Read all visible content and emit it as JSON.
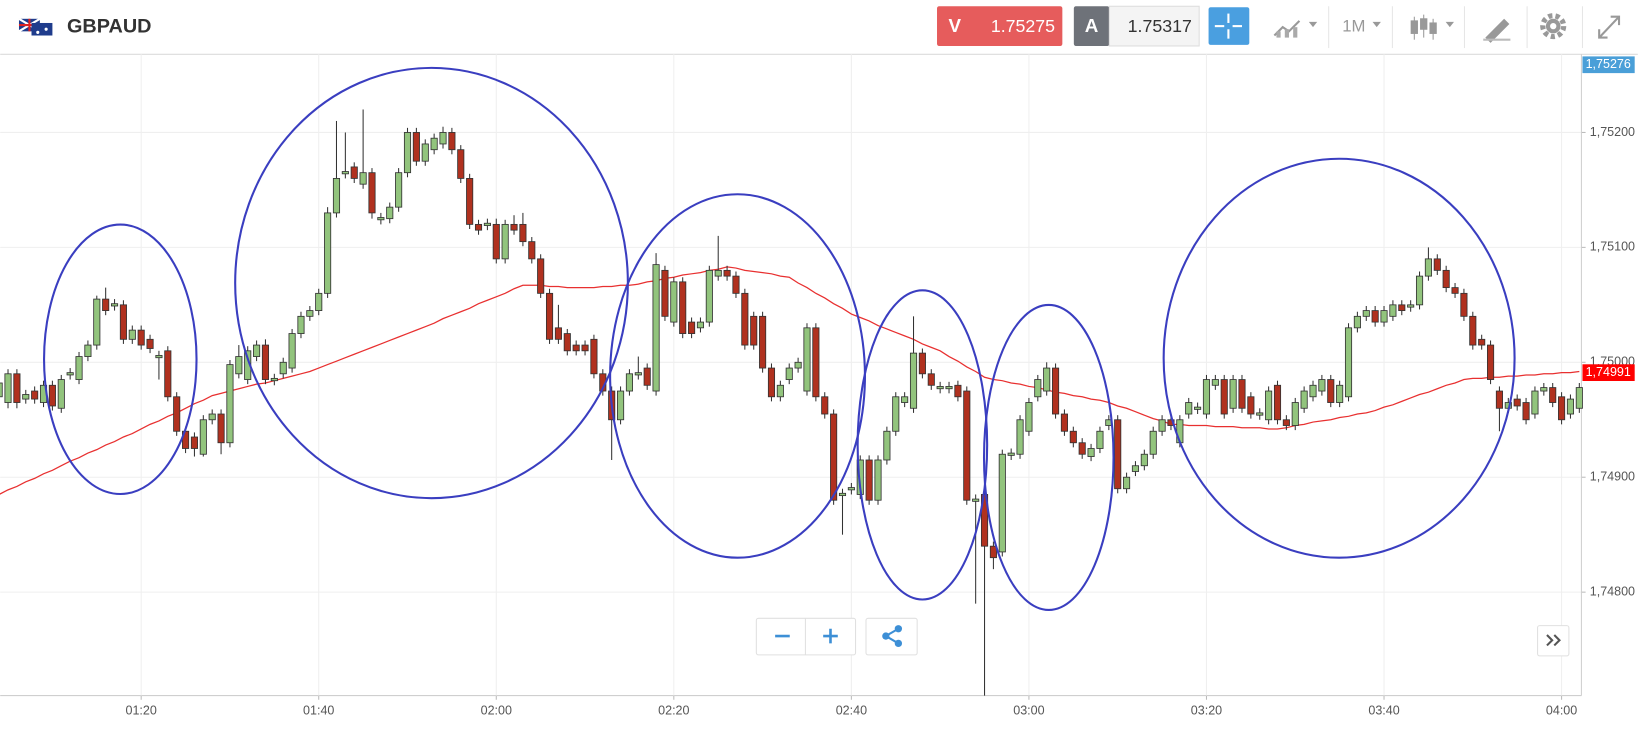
{
  "header": {
    "symbol": "GBPAUD",
    "sell_label": "V",
    "sell_price": "1.75275",
    "buy_label": "A",
    "buy_price": "1.75317",
    "timeframe": "1M"
  },
  "chart_data": {
    "type": "candlestick",
    "categories": [
      null,
      null,
      null,
      null,
      null,
      null,
      null,
      null,
      null,
      null,
      null,
      null,
      null,
      null,
      null,
      null,
      "01:20",
      null,
      null,
      null,
      null,
      null,
      null,
      null,
      null,
      null,
      null,
      null,
      null,
      null,
      null,
      null,
      null,
      null,
      null,
      null,
      "01:40",
      null,
      null,
      null,
      null,
      null,
      null,
      null,
      null,
      null,
      null,
      null,
      null,
      null,
      null,
      null,
      null,
      null,
      null,
      null,
      "02:00",
      null,
      null,
      null,
      null,
      null,
      null,
      null,
      null,
      null,
      null,
      null,
      null,
      null,
      null,
      null,
      null,
      null,
      null,
      null,
      "02:20",
      null,
      null,
      null,
      null,
      null,
      null,
      null,
      null,
      null,
      null,
      null,
      null,
      null,
      null,
      null,
      null,
      null,
      null,
      null,
      "02:40",
      null,
      null,
      null,
      null,
      null,
      null,
      null,
      null,
      null,
      null,
      null,
      null,
      null,
      null,
      null,
      null,
      null,
      null,
      null,
      "03:00",
      null,
      null,
      null,
      null,
      null,
      null,
      null,
      null,
      null,
      null,
      null,
      null,
      null,
      null,
      null,
      null,
      null,
      null,
      null,
      "03:20",
      null,
      null,
      null,
      null,
      null,
      null,
      null,
      null,
      null,
      null,
      null,
      null,
      null,
      null,
      null,
      null,
      null,
      null,
      null,
      "03:40",
      null,
      null,
      null,
      null,
      null,
      null,
      null,
      null,
      null,
      null,
      null,
      null,
      null,
      null,
      null,
      null,
      null,
      null,
      null,
      "04:00",
      null,
      null
    ],
    "open": [
      1.7497,
      1.74965,
      1.7499,
      1.74968,
      1.74975,
      1.74965,
      1.7498,
      1.7496,
      1.74989,
      1.74985,
      1.75005,
      1.75015,
      1.75055,
      1.75049,
      1.7505,
      1.7502,
      1.75028,
      1.7502,
      1.75004,
      1.7501,
      1.7497,
      1.7494,
      1.74935,
      1.7492,
      1.7495,
      1.74955,
      1.7493,
      1.7499,
      1.74985,
      1.75005,
      1.75015,
      1.74984,
      1.7499,
      1.74995,
      1.75025,
      1.7504,
      1.75045,
      1.7506,
      1.7513,
      1.75164,
      1.7517,
      1.75155,
      1.75165,
      1.75124,
      1.75125,
      1.75135,
      1.75165,
      1.752,
      1.75175,
      1.75185,
      1.7519,
      1.752,
      1.75185,
      1.7516,
      1.7512,
      1.75119,
      1.7512,
      1.7509,
      1.7512,
      1.7512,
      1.75105,
      1.7509,
      1.7506,
      1.7503,
      1.75025,
      1.75015,
      1.75015,
      1.7502,
      1.7499,
      1.74975,
      1.7495,
      1.74975,
      1.74989,
      1.74995,
      1.74975,
      1.7508,
      1.75035,
      1.7507,
      1.75035,
      1.7503,
      1.75035,
      1.75075,
      1.7508,
      1.75075,
      1.7506,
      1.7504,
      1.7504,
      1.74995,
      1.7497,
      1.74985,
      1.74995,
      1.74975,
      1.7503,
      1.7497,
      1.74955,
      1.74884,
      1.74889,
      1.74885,
      1.74915,
      1.7488,
      1.74915,
      1.7494,
      1.74965,
      1.7496,
      1.75008,
      1.7499,
      1.74977,
      1.74977,
      1.7498,
      1.74975,
      1.74879,
      1.74885,
      1.7484,
      1.74835,
      1.74919,
      1.7492,
      1.7494,
      1.7497,
      1.74975,
      1.74995,
      1.74955,
      1.7494,
      1.7493,
      1.74918,
      1.74925,
      1.74945,
      1.7495,
      1.7489,
      1.74905,
      1.7491,
      1.7492,
      1.7494,
      1.7495,
      1.7493,
      1.74955,
      1.74959,
      1.74955,
      1.7498,
      1.74985,
      1.7496,
      1.74985,
      1.7497,
      1.74954,
      1.7495,
      1.7498,
      1.7495,
      1.74945,
      1.7496,
      1.7497,
      1.74975,
      1.74985,
      1.74965,
      1.7497,
      1.7503,
      1.7504,
      1.75045,
      1.75035,
      1.7504,
      1.7505,
      1.75048,
      1.7505,
      1.75075,
      1.7509,
      1.7508,
      1.75065,
      1.7506,
      1.7504,
      1.7502,
      1.75015,
      1.74975,
      1.7496,
      1.74968,
      1.74965,
      1.74955,
      1.74975,
      1.74978,
      1.7497,
      1.74955,
      1.7496
    ],
    "high": [
      1.74988,
      1.74994,
      1.74994,
      1.74976,
      1.74979,
      1.74984,
      1.74984,
      1.74989,
      1.74995,
      1.75009,
      1.75019,
      1.75058,
      1.75065,
      1.75055,
      1.75054,
      1.75032,
      1.75032,
      1.75024,
      1.7501,
      1.75014,
      1.74974,
      1.74944,
      1.74939,
      1.74954,
      1.74959,
      1.74959,
      1.75002,
      1.75015,
      1.75014,
      1.75019,
      1.7502,
      1.7499,
      1.75004,
      1.75029,
      1.75044,
      1.75049,
      1.75064,
      1.75135,
      1.7521,
      1.752,
      1.75174,
      1.7522,
      1.75169,
      1.7513,
      1.75139,
      1.75169,
      1.75204,
      1.75204,
      1.75194,
      1.75199,
      1.75205,
      1.75204,
      1.75189,
      1.75164,
      1.75124,
      1.75125,
      1.75125,
      1.75124,
      1.75128,
      1.7513,
      1.75109,
      1.75094,
      1.75064,
      1.7505,
      1.75029,
      1.75019,
      1.75019,
      1.75024,
      1.74994,
      1.74979,
      1.74979,
      1.74994,
      1.75005,
      1.74999,
      1.75095,
      1.75084,
      1.75074,
      1.75074,
      1.75039,
      1.75039,
      1.75084,
      1.7511,
      1.75084,
      1.75079,
      1.75064,
      1.75044,
      1.75044,
      1.74999,
      1.74984,
      1.74999,
      1.75004,
      1.75034,
      1.75034,
      1.74974,
      1.74959,
      1.7489,
      1.74895,
      1.74919,
      1.74919,
      1.74919,
      1.74944,
      1.74974,
      1.74974,
      1.7504,
      1.75012,
      1.74994,
      1.74983,
      1.74983,
      1.74984,
      1.74979,
      1.74885,
      1.74889,
      1.74844,
      1.74924,
      1.74925,
      1.74954,
      1.74969,
      1.74989,
      1.75,
      1.74999,
      1.74959,
      1.74944,
      1.74934,
      1.74929,
      1.74944,
      1.74954,
      1.74954,
      1.74904,
      1.74914,
      1.74924,
      1.74944,
      1.74954,
      1.74954,
      1.74954,
      1.74969,
      1.74965,
      1.74989,
      1.74989,
      1.74989,
      1.74989,
      1.74989,
      1.74974,
      1.7496,
      1.74979,
      1.74984,
      1.74954,
      1.74969,
      1.74979,
      1.74984,
      1.74989,
      1.74989,
      1.74984,
      1.75034,
      1.75044,
      1.75049,
      1.75049,
      1.75049,
      1.75054,
      1.75054,
      1.75054,
      1.75079,
      1.751,
      1.75094,
      1.75084,
      1.75069,
      1.75064,
      1.75044,
      1.75024,
      1.75019,
      1.74979,
      1.74969,
      1.74972,
      1.74969,
      1.74979,
      1.74982,
      1.74982,
      1.74974,
      1.74972,
      1.74982
    ],
    "low": [
      1.74962,
      1.7496,
      1.7496,
      1.74964,
      1.74964,
      1.74961,
      1.74958,
      1.74956,
      1.74985,
      1.74981,
      1.75001,
      1.75011,
      1.75041,
      1.75045,
      1.75016,
      1.75016,
      1.75011,
      1.75008,
      1.74985,
      1.74966,
      1.74936,
      1.74921,
      1.74918,
      1.74918,
      1.74946,
      1.7492,
      1.74926,
      1.74986,
      1.74981,
      1.75001,
      1.74981,
      1.7498,
      1.74986,
      1.74991,
      1.75021,
      1.75036,
      1.75041,
      1.75056,
      1.75126,
      1.7516,
      1.75156,
      1.75151,
      1.75125,
      1.7512,
      1.75121,
      1.75131,
      1.75161,
      1.75171,
      1.75171,
      1.75181,
      1.75186,
      1.75181,
      1.75156,
      1.75116,
      1.75111,
      1.75115,
      1.75086,
      1.75086,
      1.75111,
      1.75101,
      1.75086,
      1.75056,
      1.75016,
      1.75016,
      1.75006,
      1.75006,
      1.75006,
      1.74986,
      1.74971,
      1.74915,
      1.74946,
      1.74971,
      1.74985,
      1.74976,
      1.74971,
      1.75036,
      1.75031,
      1.75021,
      1.75021,
      1.75026,
      1.75031,
      1.75071,
      1.75071,
      1.75056,
      1.75011,
      1.75011,
      1.74991,
      1.74966,
      1.74966,
      1.74981,
      1.74991,
      1.74971,
      1.74966,
      1.74951,
      1.74876,
      1.7485,
      1.74885,
      1.74881,
      1.74876,
      1.74876,
      1.74911,
      1.74936,
      1.74961,
      1.74956,
      1.74986,
      1.74976,
      1.74973,
      1.74973,
      1.74966,
      1.74876,
      1.7479,
      1.7471,
      1.7482,
      1.74831,
      1.74915,
      1.74916,
      1.74936,
      1.74966,
      1.74971,
      1.74951,
      1.74936,
      1.74926,
      1.74916,
      1.74914,
      1.74921,
      1.74941,
      1.74886,
      1.74886,
      1.74901,
      1.74906,
      1.74916,
      1.74936,
      1.74941,
      1.74926,
      1.74951,
      1.74955,
      1.74951,
      1.74976,
      1.74951,
      1.74956,
      1.74956,
      1.74951,
      1.7495,
      1.74946,
      1.74946,
      1.74941,
      1.74941,
      1.74956,
      1.74966,
      1.74971,
      1.74961,
      1.74961,
      1.74966,
      1.75026,
      1.75036,
      1.75031,
      1.75031,
      1.75036,
      1.75041,
      1.75044,
      1.75046,
      1.75071,
      1.75076,
      1.75061,
      1.75056,
      1.75036,
      1.75011,
      1.75011,
      1.74981,
      1.7494,
      1.74956,
      1.74958,
      1.74946,
      1.74951,
      1.74971,
      1.74961,
      1.74946,
      1.74951,
      1.74956
    ],
    "close": [
      1.74982,
      1.7499,
      1.74965,
      1.74972,
      1.74968,
      1.7498,
      1.74962,
      1.74985,
      1.74991,
      1.75005,
      1.75015,
      1.75055,
      1.75045,
      1.75051,
      1.7502,
      1.75028,
      1.75015,
      1.75012,
      1.75006,
      1.7497,
      1.7494,
      1.74925,
      1.74925,
      1.7495,
      1.74955,
      1.7493,
      1.74998,
      1.75005,
      1.7501,
      1.75015,
      1.74985,
      1.74986,
      1.75,
      1.75025,
      1.7504,
      1.75045,
      1.7506,
      1.7513,
      1.7516,
      1.75166,
      1.7516,
      1.75165,
      1.7513,
      1.75126,
      1.75135,
      1.75165,
      1.752,
      1.75175,
      1.7519,
      1.75195,
      1.752,
      1.75185,
      1.7516,
      1.7512,
      1.75115,
      1.75121,
      1.7509,
      1.7512,
      1.75115,
      1.75105,
      1.7509,
      1.7506,
      1.7502,
      1.7502,
      1.7501,
      1.7501,
      1.7501,
      1.7499,
      1.74975,
      1.7495,
      1.74975,
      1.7499,
      1.74991,
      1.7498,
      1.75085,
      1.7504,
      1.7507,
      1.75025,
      1.75025,
      1.75035,
      1.7508,
      1.7508,
      1.75075,
      1.7506,
      1.75015,
      1.75015,
      1.74995,
      1.7497,
      1.7498,
      1.74995,
      1.75,
      1.7503,
      1.7497,
      1.74955,
      1.7488,
      1.74886,
      1.74891,
      1.74915,
      1.7488,
      1.74915,
      1.7494,
      1.7497,
      1.7497,
      1.75008,
      1.7499,
      1.7498,
      1.74979,
      1.74979,
      1.7497,
      1.7488,
      1.74881,
      1.7484,
      1.7483,
      1.7492,
      1.74921,
      1.7495,
      1.74965,
      1.74985,
      1.74995,
      1.74955,
      1.7494,
      1.7493,
      1.7492,
      1.74925,
      1.7494,
      1.7495,
      1.7489,
      1.749,
      1.7491,
      1.7492,
      1.7494,
      1.7495,
      1.74945,
      1.7495,
      1.74965,
      1.74961,
      1.74985,
      1.74985,
      1.74955,
      1.74985,
      1.7496,
      1.74955,
      1.74956,
      1.74975,
      1.7495,
      1.74945,
      1.74965,
      1.74975,
      1.7498,
      1.74985,
      1.74965,
      1.7498,
      1.7503,
      1.7504,
      1.75045,
      1.75035,
      1.75045,
      1.7505,
      1.75045,
      1.7505,
      1.75075,
      1.7509,
      1.7508,
      1.75065,
      1.7506,
      1.7504,
      1.75015,
      1.75015,
      1.74985,
      1.7496,
      1.74965,
      1.74962,
      1.7495,
      1.74975,
      1.74978,
      1.74965,
      1.7495,
      1.74968,
      1.74978
    ],
    "up_color": "#92c47d",
    "down_color": "#b0311f",
    "overlays": [
      {
        "type": "line",
        "color": "#e83030",
        "values": [
          1.74885,
          1.74889,
          1.74892,
          1.74896,
          1.74899,
          1.74903,
          1.74906,
          1.7491,
          1.74914,
          1.74917,
          1.74921,
          1.74924,
          1.74928,
          1.74931,
          1.74935,
          1.74938,
          1.74942,
          1.74946,
          1.74949,
          1.74953,
          1.74956,
          1.7496,
          1.74964,
          1.74967,
          1.74971,
          1.74973,
          1.74975,
          1.74977,
          1.74979,
          1.74981,
          1.74982,
          1.74984,
          1.74986,
          1.74988,
          1.7499,
          1.74992,
          1.74995,
          1.74998,
          1.75001,
          1.75004,
          1.75007,
          1.7501,
          1.75013,
          1.75016,
          1.75019,
          1.75022,
          1.75025,
          1.75028,
          1.75031,
          1.75034,
          1.75038,
          1.75041,
          1.75044,
          1.75047,
          1.75051,
          1.75054,
          1.75057,
          1.7506,
          1.75064,
          1.75067,
          1.75067,
          1.75067,
          1.75066,
          1.75066,
          1.75065,
          1.75065,
          1.75065,
          1.75065,
          1.75066,
          1.75066,
          1.75067,
          1.75067,
          1.75068,
          1.7507,
          1.75071,
          1.75073,
          1.75074,
          1.75076,
          1.75077,
          1.75078,
          1.7508,
          1.75081,
          1.75083,
          1.75082,
          1.7508,
          1.75079,
          1.75078,
          1.75077,
          1.75075,
          1.75074,
          1.75069,
          1.75065,
          1.7506,
          1.75056,
          1.75051,
          1.75047,
          1.75042,
          1.75039,
          1.75036,
          1.75032,
          1.75029,
          1.75026,
          1.75023,
          1.7502,
          1.75016,
          1.75013,
          1.7501,
          1.75005,
          1.75001,
          1.74996,
          1.74992,
          1.74987,
          1.74985,
          1.74984,
          1.74982,
          1.74981,
          1.74979,
          1.74978,
          1.74976,
          1.74974,
          1.74973,
          1.74971,
          1.7497,
          1.74968,
          1.74967,
          1.74965,
          1.74962,
          1.7496,
          1.74957,
          1.74954,
          1.74951,
          1.74949,
          1.74946,
          1.74946,
          1.74945,
          1.74945,
          1.74945,
          1.74944,
          1.74944,
          1.74944,
          1.74943,
          1.74943,
          1.74943,
          1.74942,
          1.74942,
          1.74943,
          1.74945,
          1.74946,
          1.74948,
          1.74949,
          1.7495,
          1.74952,
          1.74953,
          1.74955,
          1.74956,
          1.74958,
          1.74961,
          1.74963,
          1.74966,
          1.74969,
          1.74972,
          1.74974,
          1.74977,
          1.7498,
          1.74982,
          1.74985,
          1.74986,
          1.74986,
          1.74987,
          1.74987,
          1.74988,
          1.74988,
          1.74989,
          1.74989,
          1.7499,
          1.7499,
          1.74991,
          1.74991,
          1.74992
        ]
      }
    ],
    "ylim": [
      1.7471,
      1.75268
    ],
    "yticks": [
      {
        "value": 1.752,
        "label": "1,75200"
      },
      {
        "value": 1.751,
        "label": "1,75100"
      },
      {
        "value": 1.75,
        "label": "1,75000"
      },
      {
        "value": 1.749,
        "label": "1,74900"
      },
      {
        "value": 1.748,
        "label": "1,74800"
      }
    ],
    "grid": true,
    "price_markers": [
      {
        "value": 1.75276,
        "label": "1,75276",
        "color": "#4a9fd8"
      },
      {
        "value": 1.74991,
        "label": "1,74991",
        "color": "#ff0000"
      }
    ]
  }
}
